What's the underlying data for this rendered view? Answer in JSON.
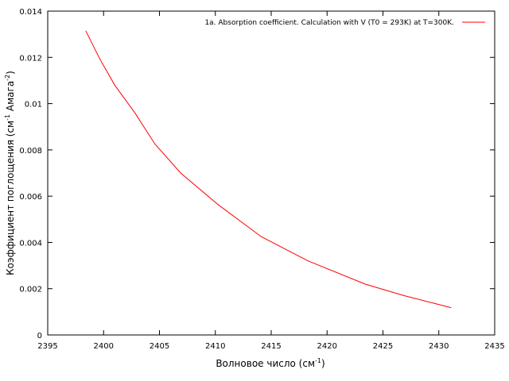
{
  "chart_data": {
    "type": "line",
    "title": "",
    "xlabel": {
      "main": "Волновое число (см",
      "sup": "-1",
      "close": ")"
    },
    "ylabel": {
      "part1": "Коэффициент поглощения (см",
      "sup1": "-1",
      "part2": " Амага",
      "sup2": "-2",
      "part3": ")"
    },
    "xlim": [
      2395,
      2435
    ],
    "ylim": [
      0,
      0.014
    ],
    "xticks": [
      2395,
      2400,
      2405,
      2410,
      2415,
      2420,
      2425,
      2430,
      2435
    ],
    "yticks": [
      0,
      0.002,
      0.004,
      0.006,
      0.008,
      0.01,
      0.012,
      0.014
    ],
    "ytick_labels": [
      "0",
      "0.002",
      "0.004",
      "0.006",
      "0.008",
      "0.01",
      "0.012",
      "0.014"
    ],
    "grid": false,
    "legend_position": "top-right",
    "series": [
      {
        "name": "1a. Absorption coefficient. Calculation with V (T0 = 293K) at T=300K.",
        "color": "#ff0000",
        "x": [
          2398.4,
          2399.7,
          2401.0,
          2402.8,
          2404.6,
          2406.9,
          2410.2,
          2414.1,
          2418.3,
          2423.4,
          2426.9,
          2431.1
        ],
        "y": [
          0.01315,
          0.0119,
          0.0108,
          0.0096,
          0.00825,
          0.007,
          0.00565,
          0.00425,
          0.0032,
          0.0022,
          0.0017,
          0.00118
        ]
      }
    ]
  }
}
